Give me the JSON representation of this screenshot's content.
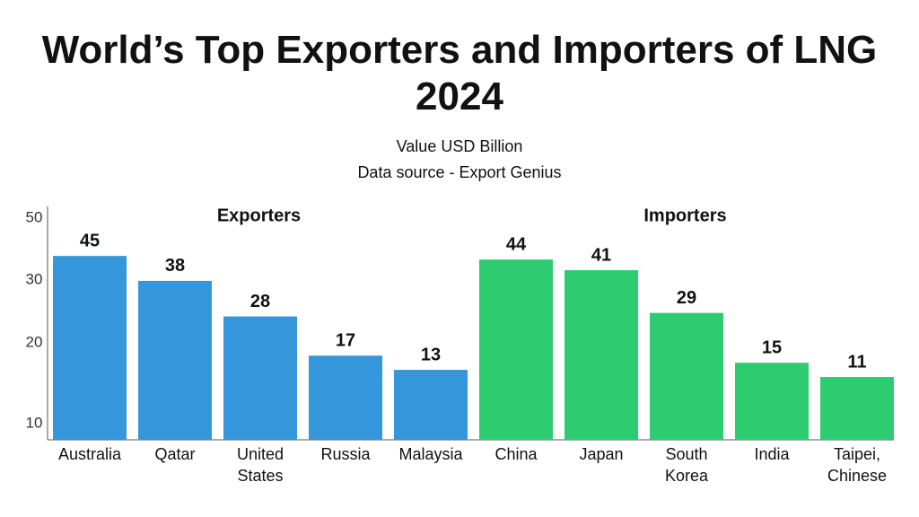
{
  "title": "World’s Top Exporters and Importers of LNG 2024",
  "subtitle": "Value USD Billion",
  "source": "Data source - Export Genius",
  "colors": {
    "exporters": "#3597DB",
    "importers": "#2ECC71",
    "text": "#111111",
    "axis": "#333333"
  },
  "chart_data": {
    "type": "bar",
    "title": "World’s Top Exporters and Importers of LNG 2024",
    "subtitle": "Value USD Billion",
    "xlabel": "",
    "ylabel": "",
    "y_ticks": [
      "10",
      "20",
      "30",
      "50"
    ],
    "grid": false,
    "groups": [
      {
        "name": "Exporters",
        "categories": [
          [
            "Australia"
          ],
          [
            "Qatar"
          ],
          [
            "United",
            "States"
          ],
          [
            "Russia"
          ],
          [
            "Malaysia"
          ]
        ],
        "values": [
          45,
          38,
          28,
          17,
          13
        ]
      },
      {
        "name": "Importers",
        "categories": [
          [
            "China"
          ],
          [
            "Japan"
          ],
          [
            "South",
            "Korea"
          ],
          [
            "India"
          ],
          [
            "Taipei,",
            "Chinese"
          ]
        ],
        "values": [
          44,
          41,
          29,
          15,
          11
        ]
      }
    ]
  }
}
